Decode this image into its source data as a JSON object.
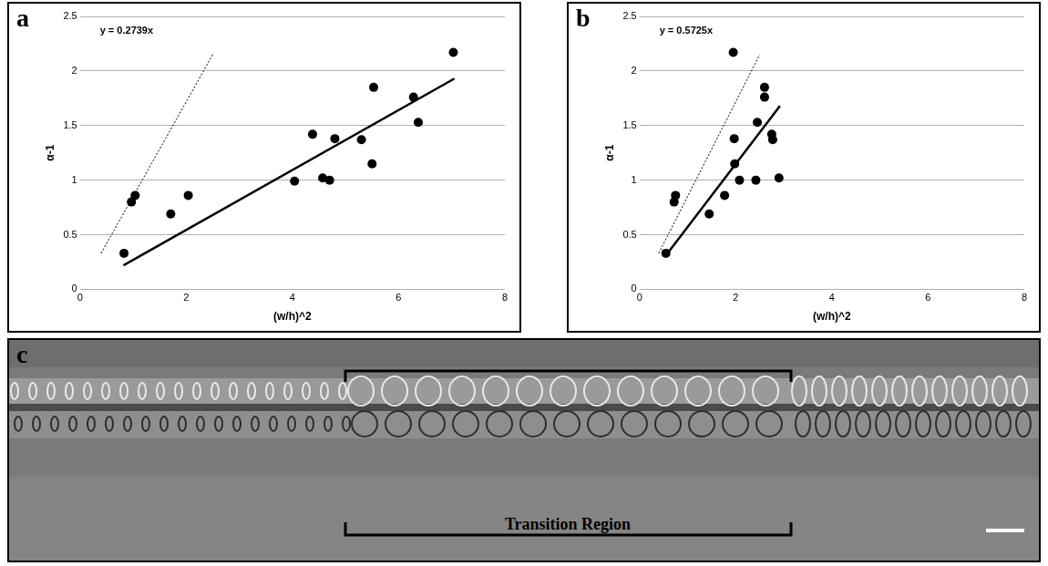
{
  "chart_data": [
    {
      "panel": "a",
      "type": "scatter",
      "x_label": "(w/h)^2",
      "y_label": "α-1",
      "annotation": "y = 0.2739x",
      "xlim": [
        0,
        8
      ],
      "xticks": [
        0,
        2,
        4,
        6,
        8
      ],
      "ylim": [
        0,
        2.5
      ],
      "yticks": [
        0,
        0.5,
        1,
        1.5,
        2,
        2.5
      ],
      "grid": "y",
      "series": [
        {
          "type": "scatter",
          "color": "#000000",
          "marker": "circle",
          "x": [
            0.83,
            0.97,
            1.04,
            1.71,
            2.04,
            4.04,
            4.38,
            4.57,
            4.7,
            4.8,
            5.3,
            5.5,
            5.53,
            6.28,
            6.37,
            7.03
          ],
          "values": [
            0.33,
            0.8,
            0.86,
            0.69,
            0.86,
            0.99,
            1.42,
            1.02,
            1.0,
            1.38,
            1.37,
            1.15,
            1.85,
            1.76,
            1.53,
            2.17
          ]
        },
        {
          "type": "line",
          "color": "#000000",
          "line_style": "solid",
          "x": [
            0.82,
            7.05
          ],
          "values": [
            0.22,
            1.93
          ]
        },
        {
          "type": "line",
          "color": "#000000",
          "line_style": "dotted",
          "x": [
            0.4,
            2.5
          ],
          "values": [
            0.33,
            2.15
          ]
        }
      ]
    },
    {
      "panel": "b",
      "type": "scatter",
      "x_label": "(w/h)^2",
      "y_label": "α-1",
      "annotation": "y = 0.5725x",
      "xlim": [
        0,
        8
      ],
      "xticks": [
        0,
        2,
        4,
        6,
        8
      ],
      "ylim": [
        0,
        2.5
      ],
      "yticks": [
        0,
        0.5,
        1,
        1.5,
        2,
        2.5
      ],
      "grid": "y",
      "series": [
        {
          "type": "scatter",
          "color": "#000000",
          "marker": "circle",
          "x": [
            0.55,
            0.72,
            0.75,
            1.45,
            1.77,
            2.08,
            2.75,
            2.9,
            2.42,
            1.97,
            2.77,
            1.98,
            2.6,
            2.6,
            2.45,
            1.95
          ],
          "values": [
            0.33,
            0.8,
            0.86,
            0.69,
            0.86,
            1.0,
            1.42,
            1.02,
            1.0,
            1.38,
            1.37,
            1.15,
            1.85,
            1.76,
            1.53,
            2.17
          ]
        },
        {
          "type": "line",
          "color": "#000000",
          "line_style": "solid",
          "x": [
            0.55,
            2.92
          ],
          "values": [
            0.31,
            1.68
          ]
        },
        {
          "type": "line",
          "color": "#000000",
          "line_style": "dotted",
          "x": [
            0.4,
            2.5
          ],
          "values": [
            0.33,
            2.15
          ]
        }
      ]
    }
  ],
  "image": {
    "panel": "c",
    "annotation": "Transition Region"
  }
}
